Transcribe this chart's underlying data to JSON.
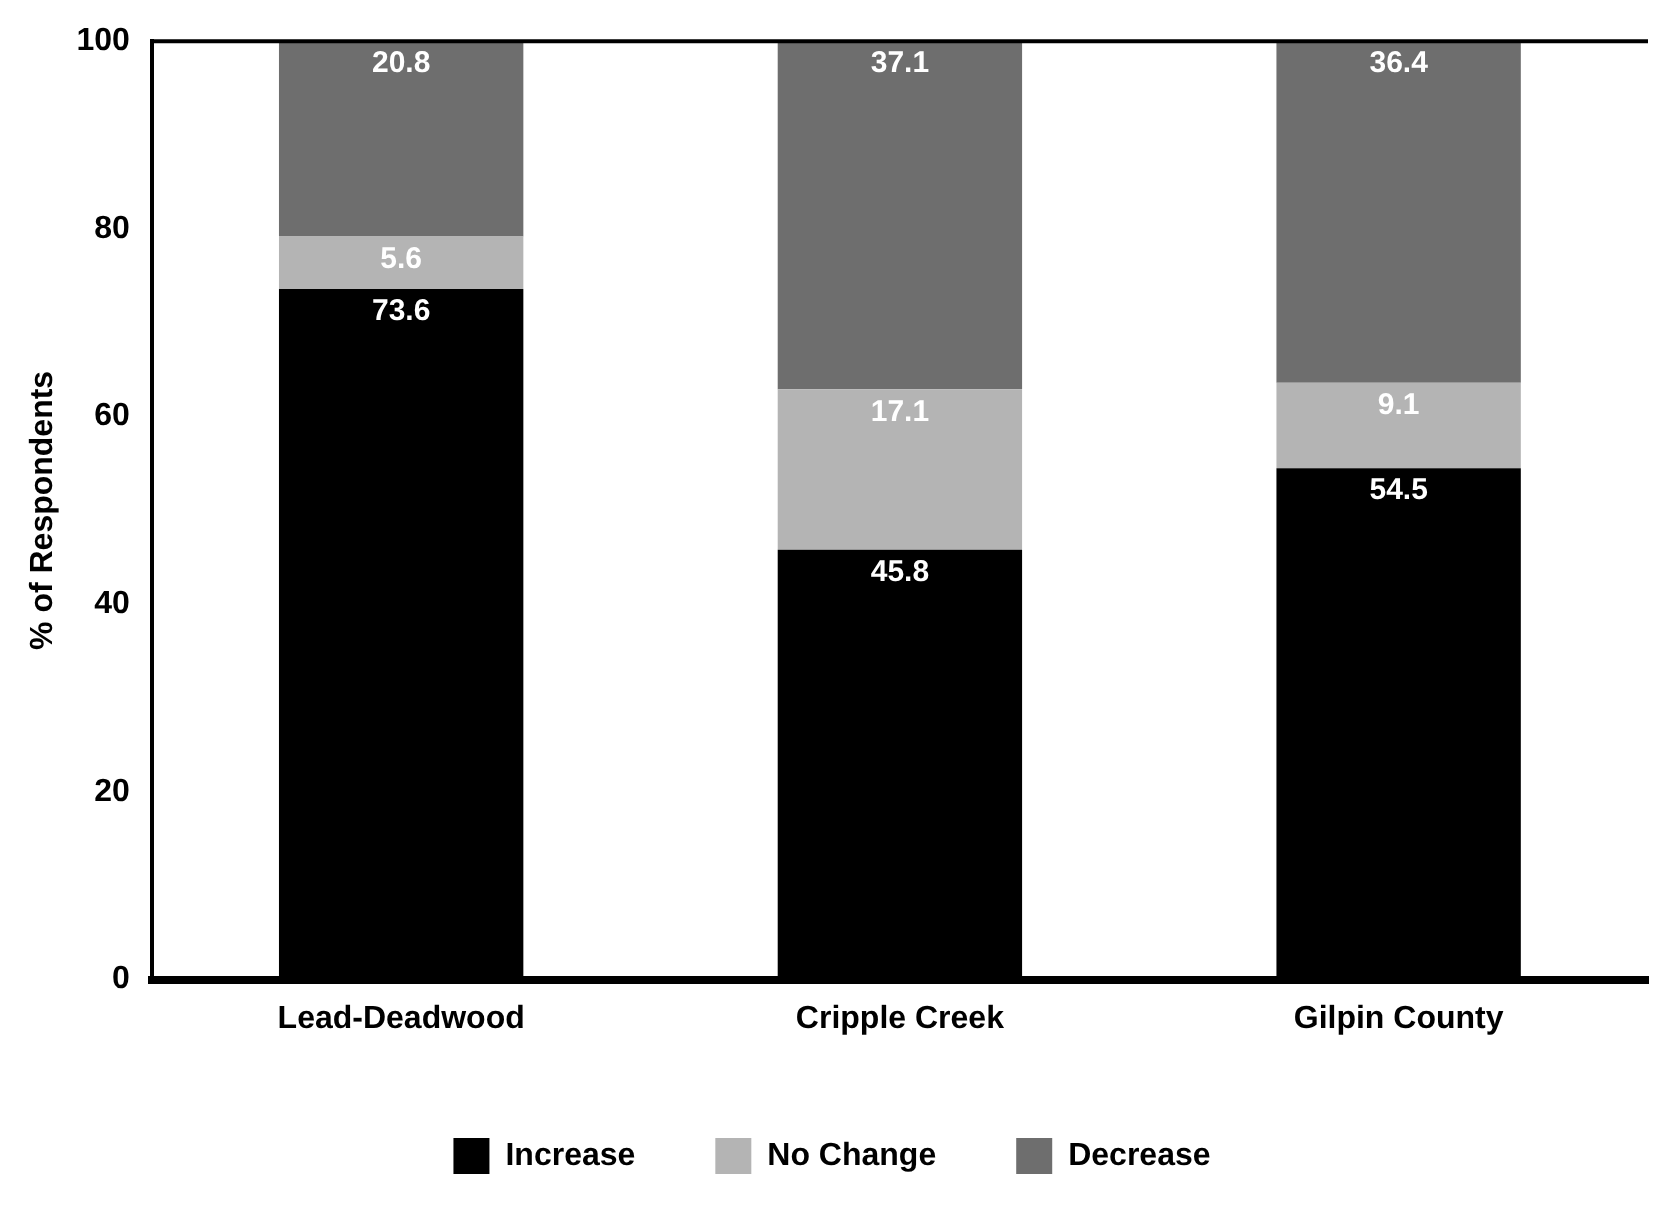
{
  "chart_data": {
    "type": "bar",
    "stacked": true,
    "ylabel": "% of Respondents",
    "categories": [
      "Lead-Deadwood",
      "Cripple Creek",
      "Gilpin County"
    ],
    "series": [
      {
        "name": "Increase",
        "color": "#000000",
        "values": [
          73.6,
          45.8,
          54.5
        ]
      },
      {
        "name": "No Change",
        "color": "#b4b4b4",
        "values": [
          5.6,
          17.1,
          9.1
        ]
      },
      {
        "name": "Decrease",
        "color": "#6e6e6e",
        "values": [
          20.8,
          37.1,
          36.4
        ]
      }
    ],
    "ylim": [
      0,
      100
    ],
    "yticks": [
      0,
      20,
      40,
      60,
      80,
      100
    ],
    "grid": false,
    "legend": "bottom",
    "data_labels": true
  }
}
